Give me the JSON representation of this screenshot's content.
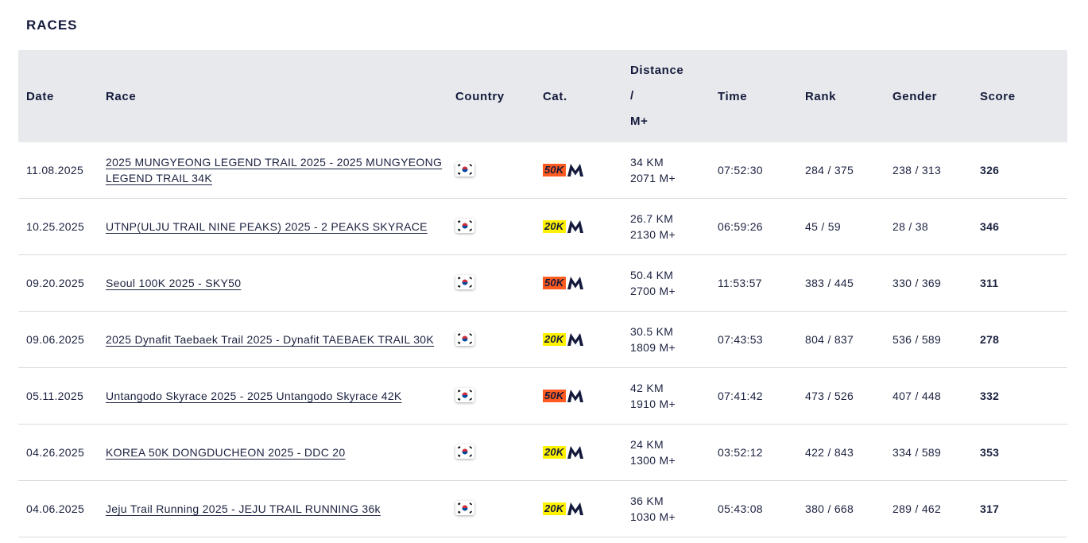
{
  "section_title": "RACES",
  "columns": {
    "date": "Date",
    "race": "Race",
    "country": "Country",
    "cat": "Cat.",
    "distance_1": "Distance",
    "distance_2": "/",
    "distance_3": "M+",
    "time": "Time",
    "rank": "Rank",
    "gender": "Gender",
    "score": "Score"
  },
  "colors": {
    "cat_50k": "#ff5a1f",
    "cat_20k": "#fff200",
    "brand_navy": "#141a3c"
  },
  "country_flag_icon": "south-korea-flag-icon",
  "rows": [
    {
      "date": "11.08.2025",
      "race": "2025 MUNGYEONG LEGEND TRAIL 2025 - 2025 MUNGYEONG LEGEND TRAIL 34K",
      "cat": "50K",
      "distance": "34 KM",
      "elevation": "2071 M+",
      "time": "07:52:30",
      "rank": "284 / 375",
      "gender": "238 / 313",
      "score": "326"
    },
    {
      "date": "10.25.2025",
      "race": "UTNP(ULJU TRAIL NINE PEAKS) 2025 - 2 PEAKS SKYRACE",
      "cat": "20K",
      "distance": "26.7 KM",
      "elevation": "2130 M+",
      "time": "06:59:26",
      "rank": "45 / 59",
      "gender": "28 / 38",
      "score": "346"
    },
    {
      "date": "09.20.2025",
      "race": "Seoul 100K 2025 - SKY50",
      "cat": "50K",
      "distance": "50.4 KM",
      "elevation": "2700 M+",
      "time": "11:53:57",
      "rank": "383 / 445",
      "gender": "330 / 369",
      "score": "311"
    },
    {
      "date": "09.06.2025",
      "race": "2025 Dynafit Taebaek Trail 2025 - Dynafit TAEBAEK TRAIL 30K",
      "cat": "20K",
      "distance": "30.5 KM",
      "elevation": "1809 M+",
      "time": "07:43:53",
      "rank": "804 / 837",
      "gender": "536 / 589",
      "score": "278"
    },
    {
      "date": "05.11.2025",
      "race": "Untangodo Skyrace 2025 - 2025 Untangodo Skyrace 42K",
      "cat": "50K",
      "distance": "42 KM",
      "elevation": "1910 M+",
      "time": "07:41:42",
      "rank": "473 / 526",
      "gender": "407 / 448",
      "score": "332"
    },
    {
      "date": "04.26.2025",
      "race": "KOREA 50K DONGDUCHEON 2025 - DDC 20",
      "cat": "20K",
      "distance": "24 KM",
      "elevation": "1300 M+",
      "time": "03:52:12",
      "rank": "422 / 843",
      "gender": "334 / 589",
      "score": "353"
    },
    {
      "date": "04.06.2025",
      "race": "Jeju Trail Running 2025 - JEJU TRAIL RUNNING 36k",
      "cat": "20K",
      "distance": "36 KM",
      "elevation": "1030 M+",
      "time": "05:43:08",
      "rank": "380 / 668",
      "gender": "289 / 462",
      "score": "317"
    }
  ]
}
